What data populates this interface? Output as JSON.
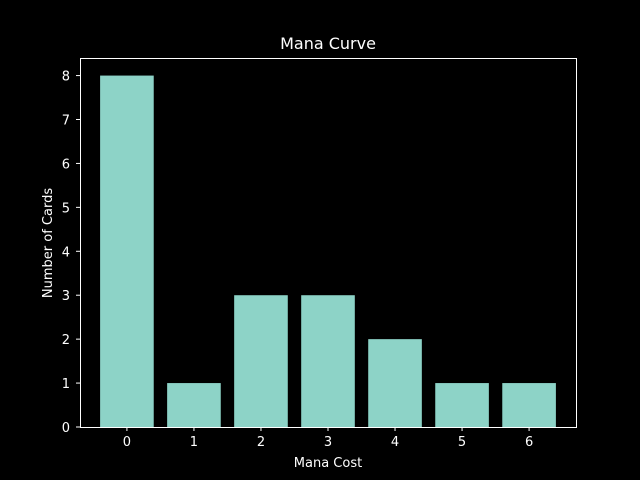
{
  "chart_data": {
    "type": "bar",
    "title": "Mana Curve",
    "xlabel": "Mana Cost",
    "ylabel": "Number of Cards",
    "categories": [
      "0",
      "1",
      "2",
      "3",
      "4",
      "5",
      "6"
    ],
    "values": [
      8,
      1,
      3,
      3,
      2,
      1,
      1
    ],
    "ylim": [
      0,
      8.4
    ],
    "yticks": [
      "0",
      "1",
      "2",
      "3",
      "4",
      "5",
      "6",
      "7",
      "8"
    ],
    "grid": false,
    "colors": {
      "background": "#000000",
      "bar": "#8dd3c7",
      "text": "#ffffff",
      "axis": "#ffffff"
    }
  }
}
